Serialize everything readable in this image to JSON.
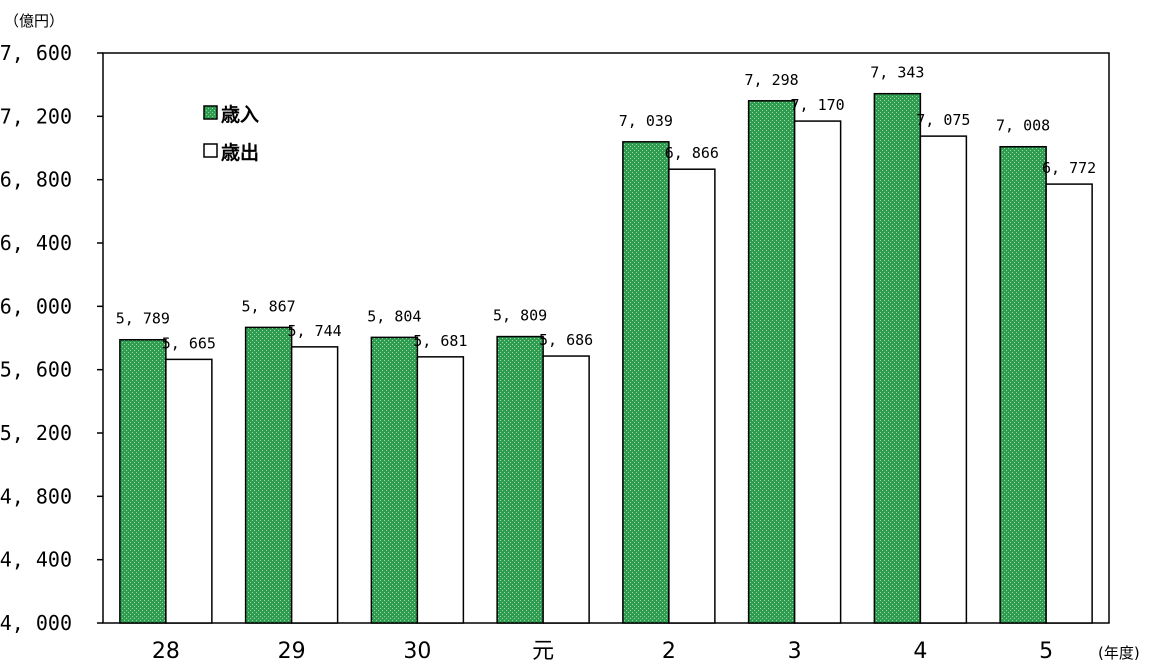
{
  "chart_data": {
    "type": "bar",
    "y_unit": "（億円）",
    "x_unit": "(年度)",
    "categories": [
      "28",
      "29",
      "30",
      "元",
      "2",
      "3",
      "4",
      "5"
    ],
    "ylim": [
      4000,
      7600
    ],
    "yticks": [
      4000,
      4400,
      4800,
      5200,
      5600,
      6000,
      6400,
      6800,
      7200,
      7600
    ],
    "ytick_labels": [
      "4, 000",
      "4, 400",
      "4, 800",
      "5, 200",
      "5, 600",
      "6, 000",
      "6, 400",
      "6, 800",
      "7, 200",
      "7, 600"
    ],
    "series": [
      {
        "name": "歳入",
        "legend_label": "■歳入",
        "color": "#2e9d4f",
        "values": [
          5789,
          5867,
          5804,
          5809,
          7039,
          7298,
          7343,
          7008
        ],
        "labels": [
          "5, 789",
          "5, 867",
          "5, 804",
          "5, 809",
          "7, 039",
          "7, 298",
          "7, 343",
          "7, 008"
        ]
      },
      {
        "name": "歳出",
        "legend_label": "□歳出",
        "color": "#ffffff",
        "values": [
          5665,
          5744,
          5681,
          5686,
          6866,
          7170,
          7075,
          6772
        ],
        "labels": [
          "5, 665",
          "5, 744",
          "5, 681",
          "5, 686",
          "6, 866",
          "7, 170",
          "7, 075",
          "6, 772"
        ]
      }
    ],
    "grid": false,
    "legend_position": "top-left"
  }
}
